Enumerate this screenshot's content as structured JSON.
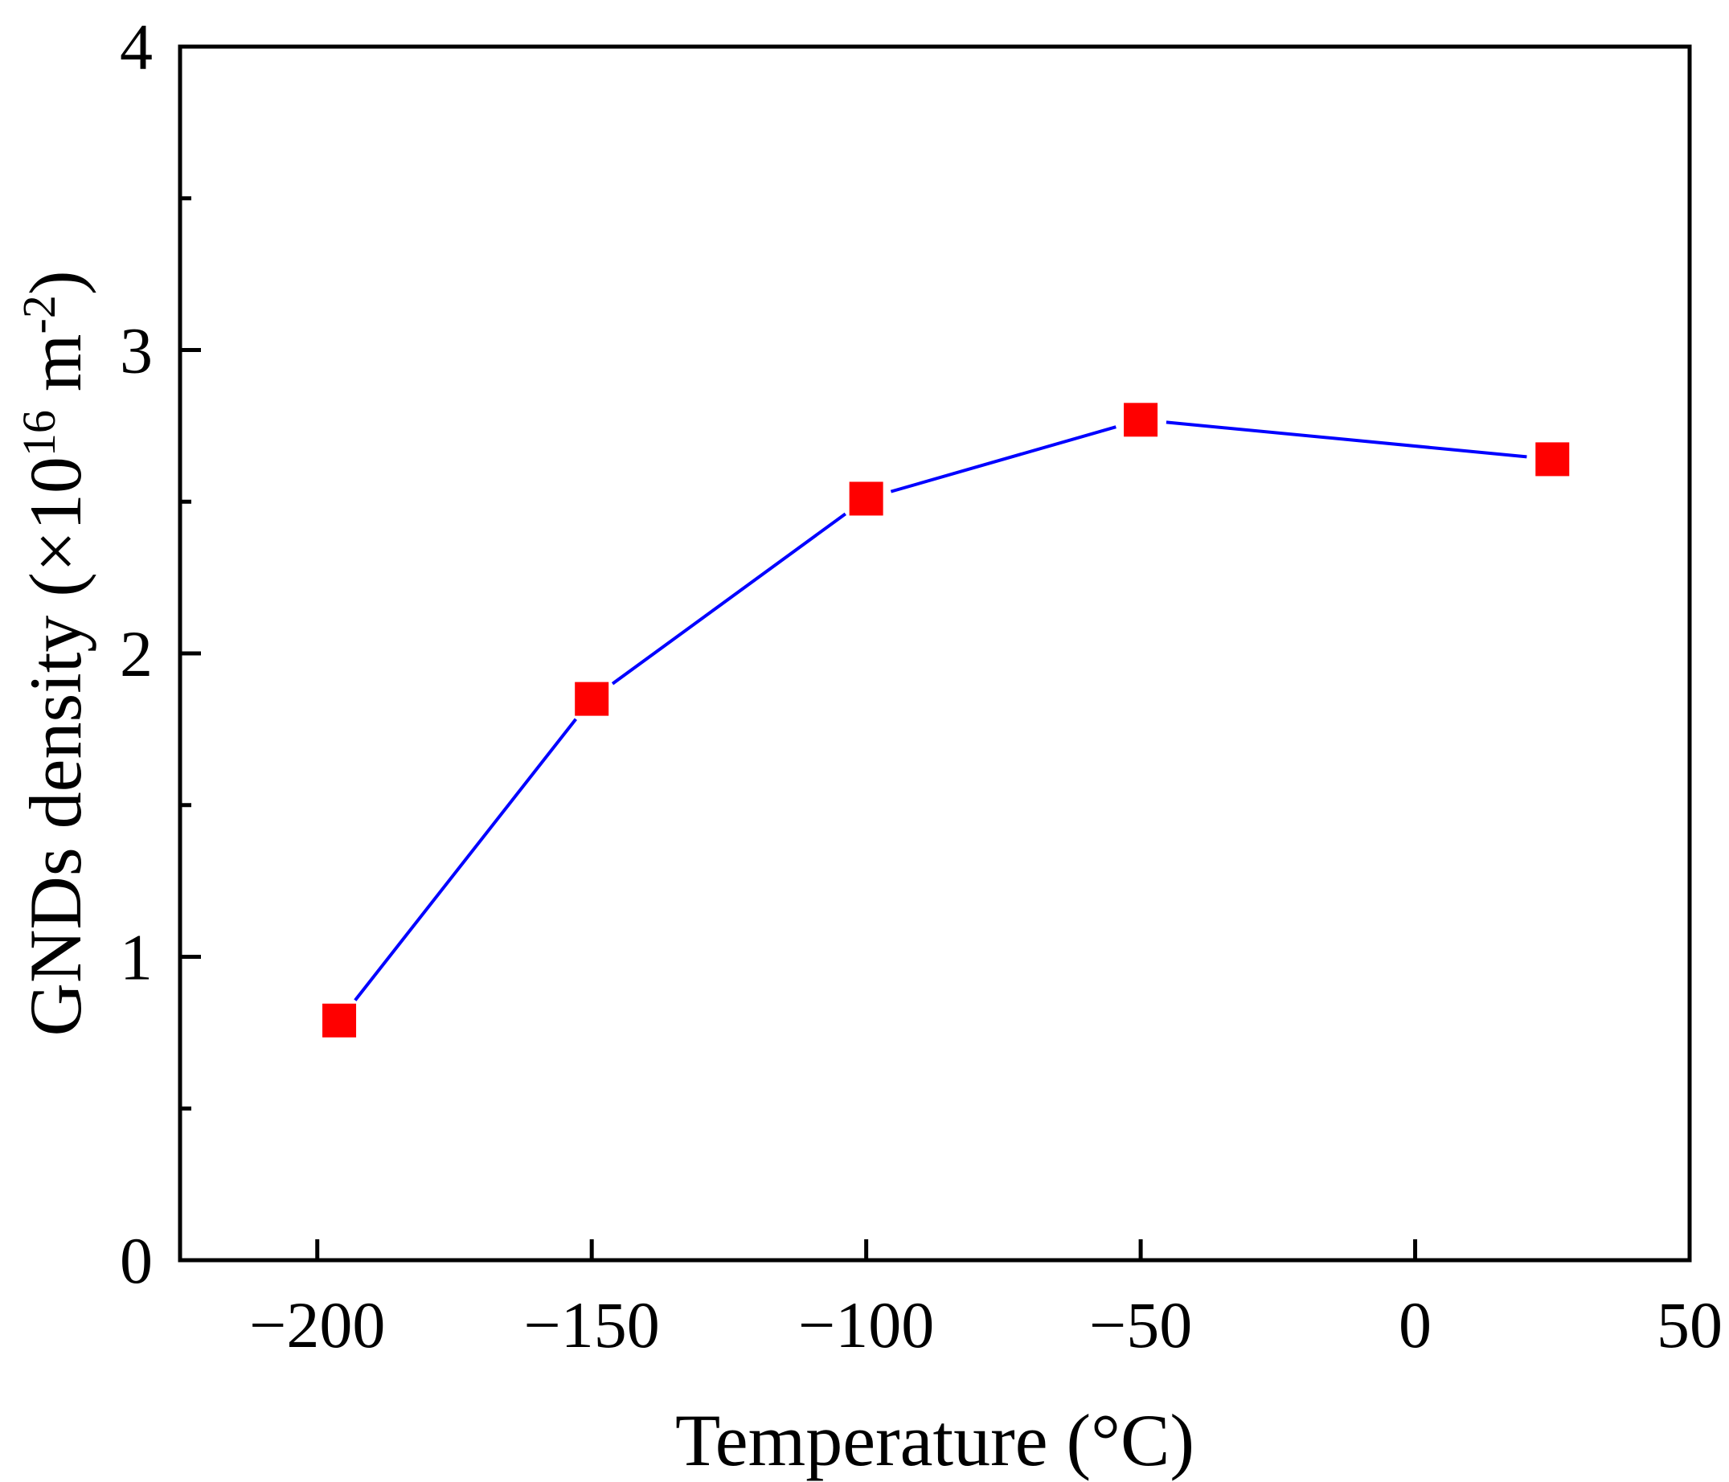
{
  "chart_data": {
    "type": "line",
    "title": "",
    "xlabel": "Temperature (°C)",
    "ylabel": {
      "prefix": "GNDs density (×10",
      "exp1": "16",
      "middle": " m",
      "exp2": "-2",
      "suffix": ")"
    },
    "xlim": [
      -225,
      50
    ],
    "ylim": [
      0,
      4
    ],
    "xticks": [
      -200,
      -150,
      -100,
      -50,
      0,
      50
    ],
    "xtick_labels": [
      "−200",
      "−150",
      "−100",
      "−50",
      "0",
      "50"
    ],
    "yticks": [
      0,
      1,
      2,
      3,
      4
    ],
    "ytick_labels": [
      "0",
      "1",
      "2",
      "3",
      "4"
    ],
    "yminor_ticks": [
      0.5,
      1.5,
      2.5,
      3.5
    ],
    "grid": false,
    "series": [
      {
        "name": "GNDs density",
        "x": [
          -196,
          -150,
          -100,
          -50,
          25
        ],
        "y": [
          0.79,
          1.85,
          2.51,
          2.77,
          2.64
        ],
        "line_color": "#0000ff",
        "marker": "square",
        "marker_color": "#ff0000"
      }
    ]
  }
}
